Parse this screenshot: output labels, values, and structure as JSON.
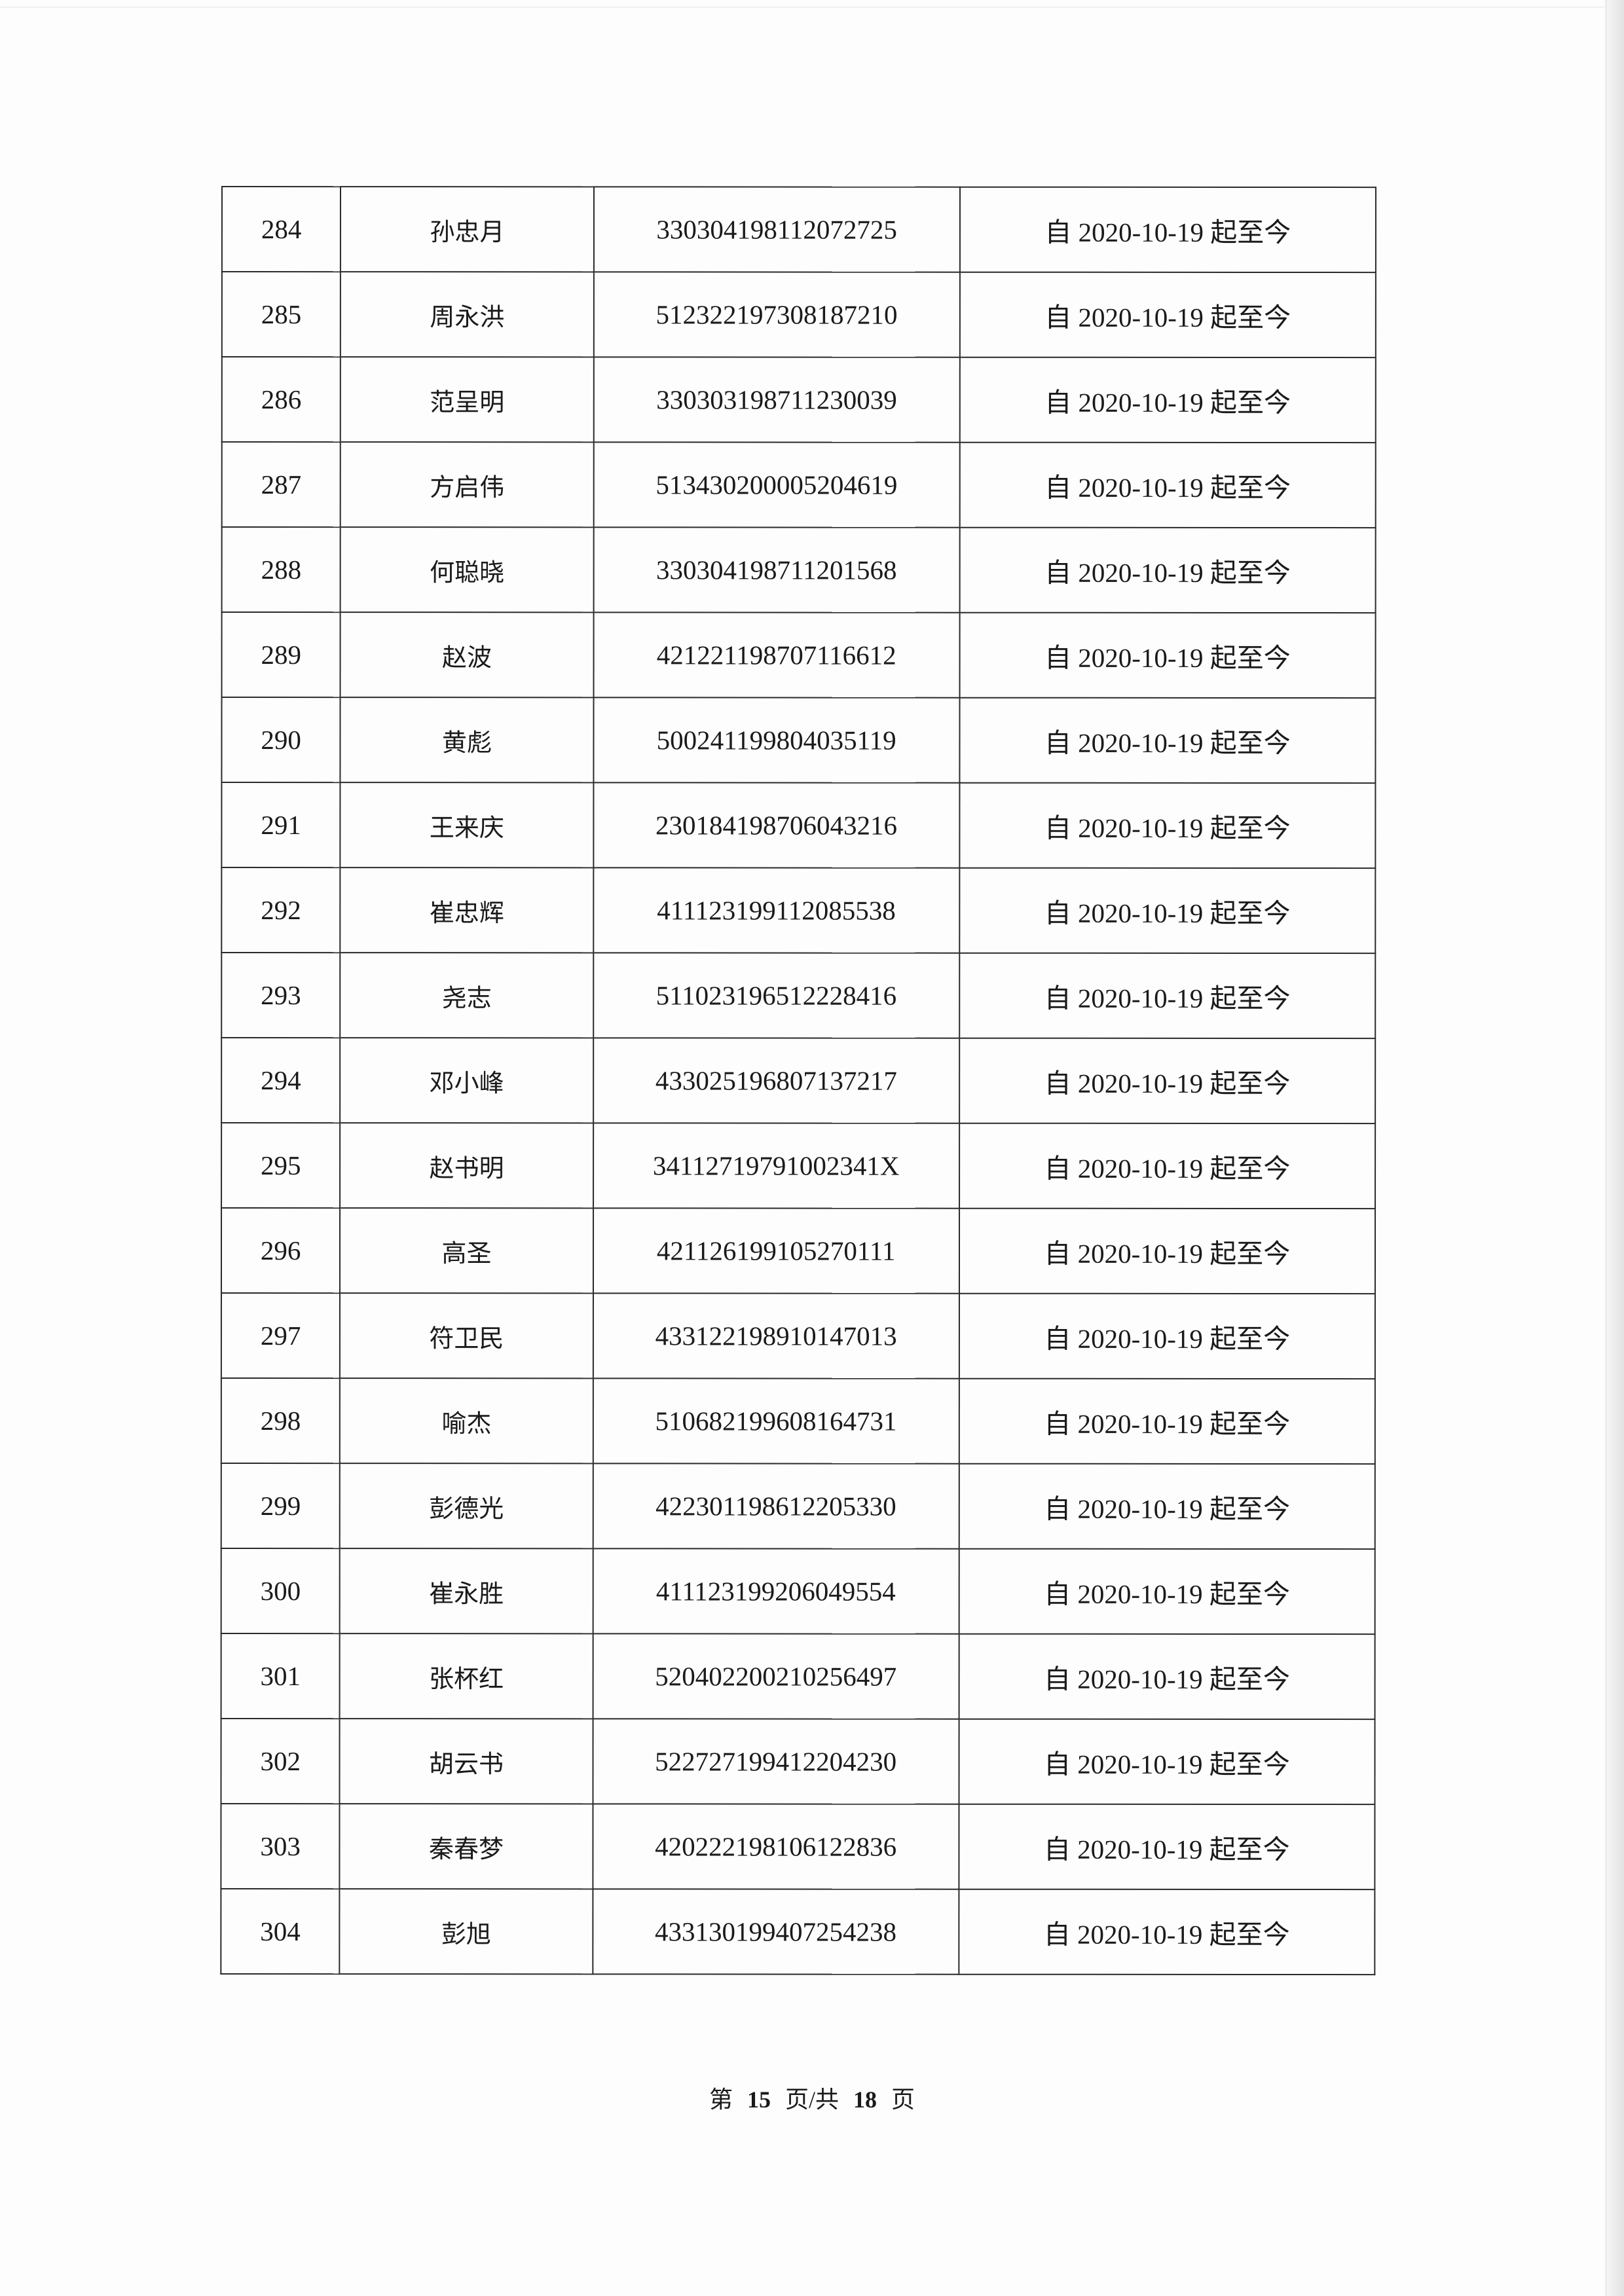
{
  "table": {
    "rows": [
      {
        "no": "284",
        "name": "孙忠月",
        "id": "330304198112072725",
        "period": "自 2020-10-19 起至今"
      },
      {
        "no": "285",
        "name": "周永洪",
        "id": "512322197308187210",
        "period": "自 2020-10-19 起至今"
      },
      {
        "no": "286",
        "name": "范呈明",
        "id": "330303198711230039",
        "period": "自 2020-10-19 起至今"
      },
      {
        "no": "287",
        "name": "方启伟",
        "id": "513430200005204619",
        "period": "自 2020-10-19 起至今"
      },
      {
        "no": "288",
        "name": "何聪晓",
        "id": "330304198711201568",
        "period": "自 2020-10-19 起至今"
      },
      {
        "no": "289",
        "name": "赵波",
        "id": "421221198707116612",
        "period": "自 2020-10-19 起至今"
      },
      {
        "no": "290",
        "name": "黄彪",
        "id": "500241199804035119",
        "period": "自 2020-10-19 起至今"
      },
      {
        "no": "291",
        "name": "王来庆",
        "id": "230184198706043216",
        "period": "自 2020-10-19 起至今"
      },
      {
        "no": "292",
        "name": "崔忠辉",
        "id": "411123199112085538",
        "period": "自 2020-10-19 起至今"
      },
      {
        "no": "293",
        "name": "尧志",
        "id": "511023196512228416",
        "period": "自 2020-10-19 起至今"
      },
      {
        "no": "294",
        "name": "邓小峰",
        "id": "433025196807137217",
        "period": "自 2020-10-19 起至今"
      },
      {
        "no": "295",
        "name": "赵书明",
        "id": "34112719791002341X",
        "period": "自 2020-10-19 起至今"
      },
      {
        "no": "296",
        "name": "高圣",
        "id": "421126199105270111",
        "period": "自 2020-10-19 起至今"
      },
      {
        "no": "297",
        "name": "符卫民",
        "id": "433122198910147013",
        "period": "自 2020-10-19 起至今"
      },
      {
        "no": "298",
        "name": "喻杰",
        "id": "510682199608164731",
        "period": "自 2020-10-19 起至今"
      },
      {
        "no": "299",
        "name": "彭德光",
        "id": "422301198612205330",
        "period": "自 2020-10-19 起至今"
      },
      {
        "no": "300",
        "name": "崔永胜",
        "id": "411123199206049554",
        "period": "自 2020-10-19 起至今"
      },
      {
        "no": "301",
        "name": "张杯红",
        "id": "520402200210256497",
        "period": "自 2020-10-19 起至今"
      },
      {
        "no": "302",
        "name": "胡云书",
        "id": "522727199412204230",
        "period": "自 2020-10-19 起至今"
      },
      {
        "no": "303",
        "name": "秦春梦",
        "id": "420222198106122836",
        "period": "自 2020-10-19 起至今"
      },
      {
        "no": "304",
        "name": "彭旭",
        "id": "433130199407254238",
        "period": "自 2020-10-19 起至今"
      }
    ]
  },
  "footer": {
    "prefix": "第",
    "current_page": "15",
    "middle": "页/共",
    "total_pages": "18",
    "suffix": "页"
  }
}
